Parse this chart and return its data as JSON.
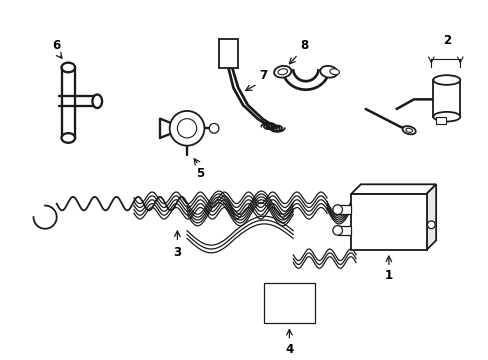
{
  "bg_color": "#ffffff",
  "line_color": "#1a1a1a",
  "lw": 1.3,
  "fig_w": 4.89,
  "fig_h": 3.6,
  "dpi": 100
}
